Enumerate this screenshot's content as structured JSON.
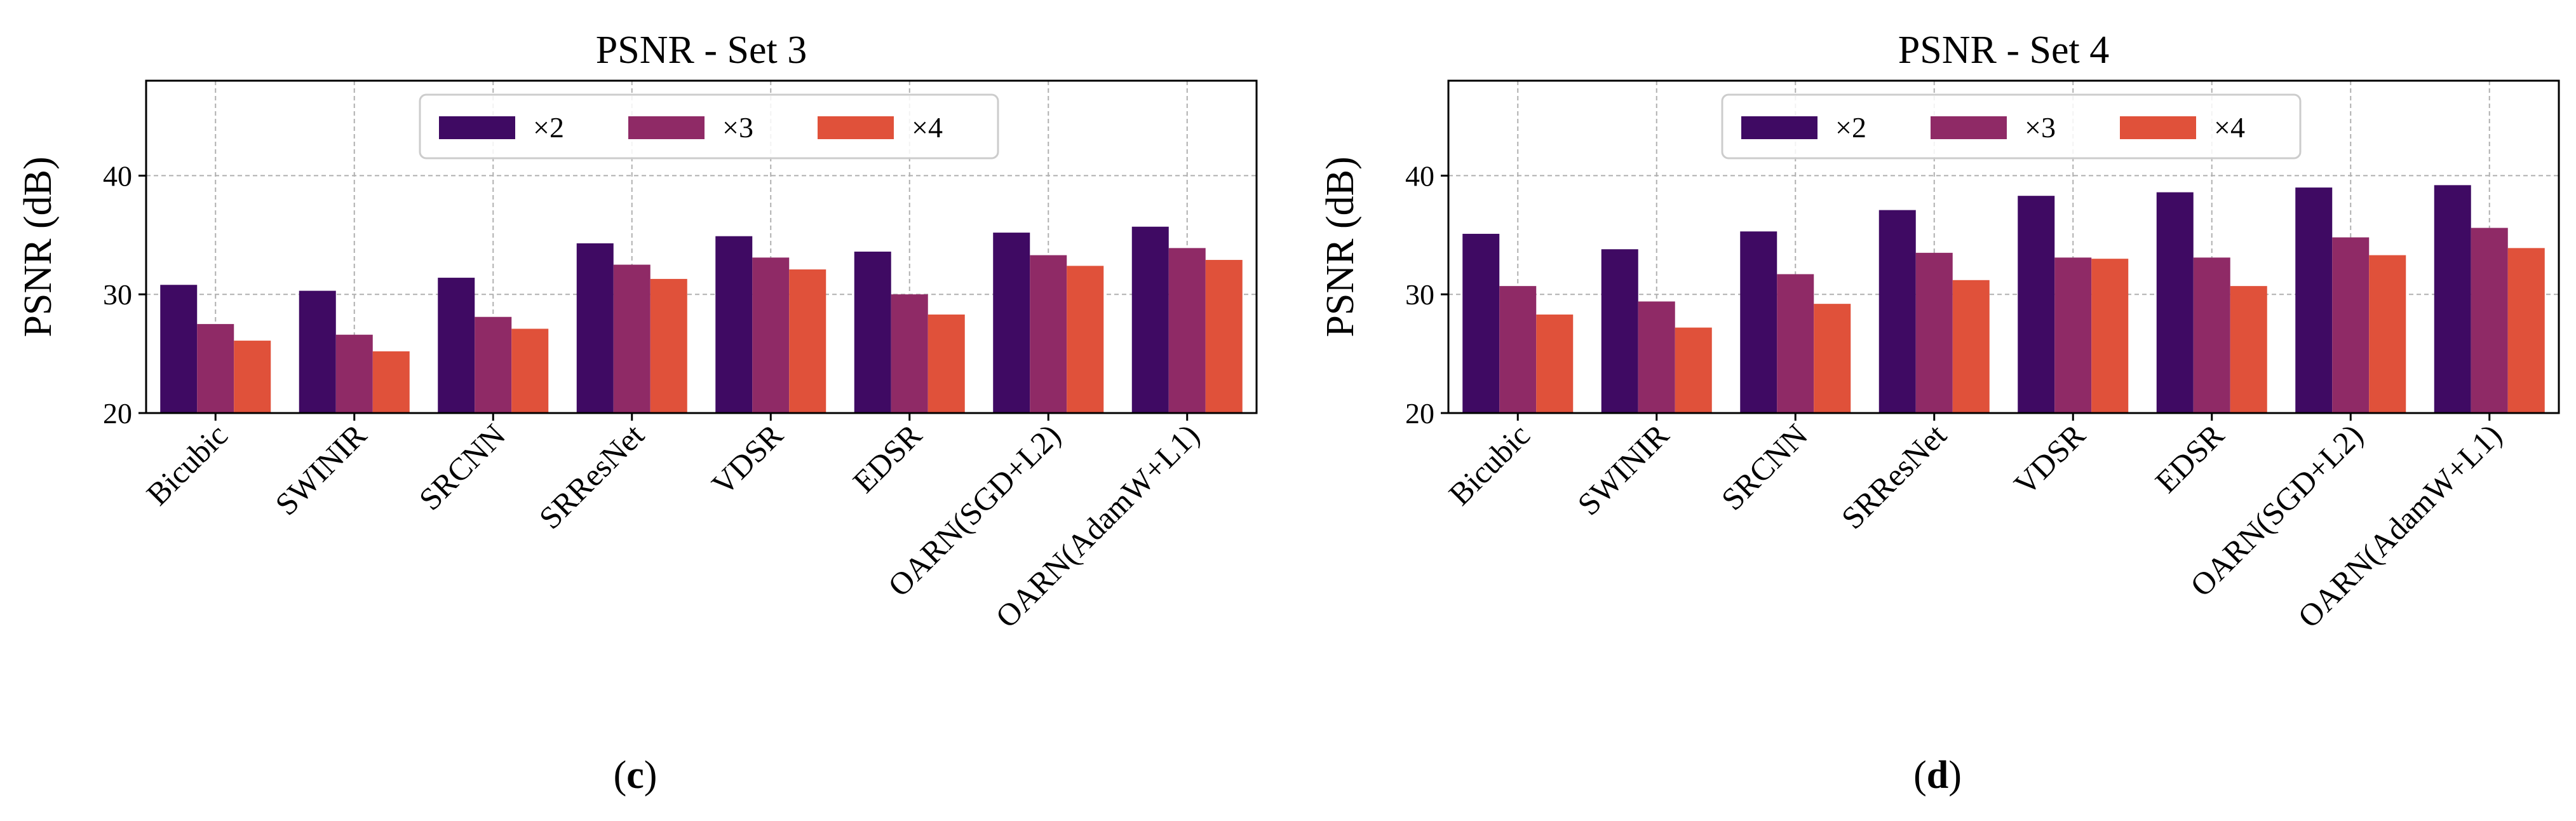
{
  "chart_data": [
    {
      "type": "bar",
      "title": "PSNR - Set 3",
      "caption": "c",
      "xlabel": "",
      "ylabel": "PSNR (dB)",
      "ylim": [
        20,
        48
      ],
      "yticks": [
        20,
        30,
        40
      ],
      "grid": true,
      "legend_position": "top-center",
      "categories": [
        "Bicubic",
        "SWINIR",
        "SRCNN",
        "SRResNet",
        "VDSR",
        "EDSR",
        "OARN(SGD+L2)",
        "OARN(AdamW+L1)"
      ],
      "series": [
        {
          "name": "×2",
          "values": [
            30.8,
            30.3,
            31.4,
            34.3,
            34.9,
            33.6,
            35.2,
            35.7
          ]
        },
        {
          "name": "×3",
          "values": [
            27.5,
            26.6,
            28.1,
            32.5,
            33.1,
            30.0,
            33.3,
            33.9
          ]
        },
        {
          "name": "×4",
          "values": [
            26.1,
            25.2,
            27.1,
            31.3,
            32.1,
            28.3,
            32.4,
            32.9
          ]
        }
      ]
    },
    {
      "type": "bar",
      "title": "PSNR - Set 4",
      "caption": "d",
      "xlabel": "",
      "ylabel": "PSNR (dB)",
      "ylim": [
        20,
        48
      ],
      "yticks": [
        20,
        30,
        40
      ],
      "grid": true,
      "legend_position": "top-center",
      "categories": [
        "Bicubic",
        "SWINIR",
        "SRCNN",
        "SRResNet",
        "VDSR",
        "EDSR",
        "OARN(SGD+L2)",
        "OARN(AdamW+L1)"
      ],
      "series": [
        {
          "name": "×2",
          "values": [
            35.1,
            33.8,
            35.3,
            37.1,
            38.3,
            38.6,
            39.0,
            39.2
          ]
        },
        {
          "name": "×3",
          "values": [
            30.7,
            29.4,
            31.7,
            33.5,
            33.1,
            33.1,
            34.8,
            35.6
          ]
        },
        {
          "name": "×4",
          "values": [
            28.3,
            27.2,
            29.2,
            31.2,
            33.0,
            30.7,
            33.3,
            33.9
          ]
        }
      ]
    }
  ],
  "colors": {
    "series": [
      "#3f0a63",
      "#8f2a66",
      "#e0513a"
    ]
  },
  "caption_format": {
    "open": "(",
    "close": ")"
  }
}
